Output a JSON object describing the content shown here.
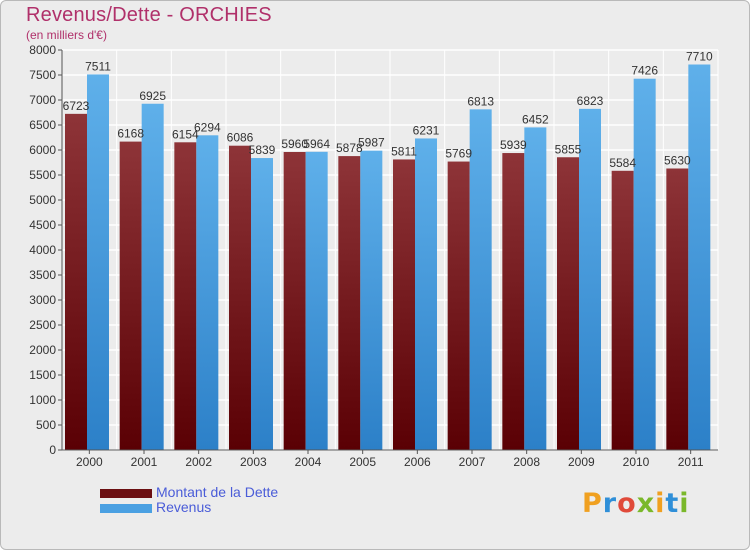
{
  "title": "Revenus/Dette - ORCHIES",
  "subtitle": "(en milliers d'€)",
  "colors": {
    "debt": "#7b1e20",
    "revenue": "#4a9fe0",
    "title": "#b0306a",
    "legend_text": "#4a5cd8"
  },
  "legend": [
    {
      "label": "Montant de la Dette",
      "color": "#6b0f12"
    },
    {
      "label": "Revenus",
      "color": "#4aa0e2"
    }
  ],
  "logo": {
    "text": "Proxiti"
  },
  "chart_data": {
    "type": "bar",
    "title": "Revenus/Dette - ORCHIES",
    "subtitle": "(en milliers d'€)",
    "categories": [
      "2000",
      "2001",
      "2002",
      "2003",
      "2004",
      "2005",
      "2006",
      "2007",
      "2008",
      "2009",
      "2010",
      "2011"
    ],
    "series": [
      {
        "name": "Montant de la Dette",
        "values": [
          6723,
          6168,
          6154,
          6086,
          5960,
          5878,
          5811,
          5769,
          5939,
          5855,
          5584,
          5630
        ]
      },
      {
        "name": "Revenus",
        "values": [
          7511,
          6925,
          6294,
          5839,
          5964,
          5987,
          6231,
          6813,
          6452,
          6823,
          7426,
          7710
        ]
      }
    ],
    "ylim": [
      0,
      8000
    ],
    "yticks": [
      0,
      500,
      1000,
      1500,
      2000,
      2500,
      3000,
      3500,
      4000,
      4500,
      5000,
      5500,
      6000,
      6500,
      7000,
      7500,
      8000
    ],
    "grid": true,
    "legend_position": "bottom-left"
  }
}
